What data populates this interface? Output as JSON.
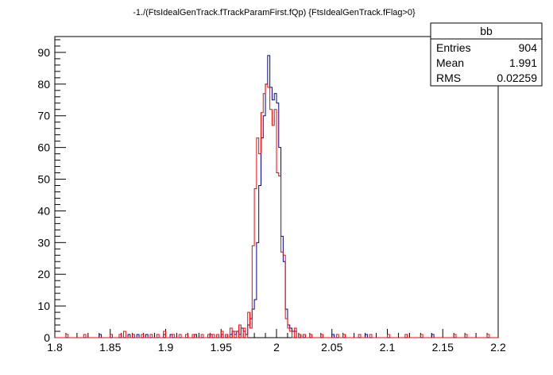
{
  "chart_data": {
    "type": "histogram-step",
    "title": "-1./(FtsIdealGenTrack.fTrackParamFirst.fQp) {FtsIdealGenTrack.fFlag>0}",
    "xlabel": "",
    "ylabel": "",
    "xlim": [
      1.8,
      2.2
    ],
    "ylim": [
      0,
      95
    ],
    "xticks": [
      1.8,
      1.85,
      1.9,
      1.95,
      2.0,
      2.05,
      2.1,
      2.15,
      2.2
    ],
    "xtick_labels": [
      "1.8",
      "1.85",
      "1.9",
      "1.95",
      "2",
      "2.05",
      "2.1",
      "2.15",
      "2.2"
    ],
    "yticks": [
      0,
      10,
      20,
      30,
      40,
      50,
      60,
      70,
      80,
      90
    ],
    "ytick_labels": [
      "0",
      "10",
      "20",
      "30",
      "40",
      "50",
      "60",
      "70",
      "80",
      "90"
    ],
    "bin_edges_range": [
      1.8,
      2.2
    ],
    "bin_count": 200,
    "series": [
      {
        "color": "#000099",
        "points": [
          [
            1.84,
            1
          ],
          [
            1.866,
            1
          ],
          [
            1.874,
            1
          ],
          [
            1.882,
            1
          ],
          [
            1.898,
            1
          ],
          [
            1.904,
            1
          ],
          [
            1.926,
            1
          ],
          [
            1.94,
            1
          ],
          [
            1.95,
            1
          ],
          [
            1.954,
            1
          ],
          [
            1.958,
            1
          ],
          [
            1.96,
            2
          ],
          [
            1.962,
            1
          ],
          [
            1.964,
            2
          ],
          [
            1.966,
            1
          ],
          [
            1.968,
            3
          ],
          [
            1.97,
            2
          ],
          [
            1.972,
            1
          ],
          [
            1.974,
            4
          ],
          [
            1.976,
            6
          ],
          [
            1.978,
            9
          ],
          [
            1.98,
            12
          ],
          [
            1.982,
            30
          ],
          [
            1.984,
            48
          ],
          [
            1.986,
            63
          ],
          [
            1.988,
            70
          ],
          [
            1.99,
            80
          ],
          [
            1.992,
            89
          ],
          [
            1.994,
            79
          ],
          [
            1.996,
            75
          ],
          [
            1.998,
            77
          ],
          [
            2.0,
            74
          ],
          [
            2.002,
            60
          ],
          [
            2.004,
            32
          ],
          [
            2.006,
            24
          ],
          [
            2.008,
            9
          ],
          [
            2.01,
            4
          ],
          [
            2.012,
            3
          ],
          [
            2.014,
            2
          ],
          [
            2.016,
            2
          ],
          [
            2.02,
            1
          ],
          [
            2.024,
            1
          ],
          [
            2.05,
            1
          ],
          [
            2.08,
            1
          ],
          [
            2.14,
            1
          ]
        ]
      },
      {
        "color": "#ff0000",
        "points": [
          [
            1.81,
            1
          ],
          [
            1.826,
            1
          ],
          [
            1.85,
            1
          ],
          [
            1.858,
            1
          ],
          [
            1.862,
            2
          ],
          [
            1.87,
            1
          ],
          [
            1.878,
            1
          ],
          [
            1.886,
            1
          ],
          [
            1.892,
            1
          ],
          [
            1.898,
            2
          ],
          [
            1.906,
            1
          ],
          [
            1.912,
            1
          ],
          [
            1.918,
            1
          ],
          [
            1.924,
            1
          ],
          [
            1.932,
            1
          ],
          [
            1.938,
            1
          ],
          [
            1.942,
            1
          ],
          [
            1.946,
            1
          ],
          [
            1.95,
            2
          ],
          [
            1.954,
            1
          ],
          [
            1.958,
            3
          ],
          [
            1.962,
            2
          ],
          [
            1.966,
            4
          ],
          [
            1.97,
            3
          ],
          [
            1.974,
            8
          ],
          [
            1.976,
            3
          ],
          [
            1.978,
            29
          ],
          [
            1.98,
            47
          ],
          [
            1.982,
            63
          ],
          [
            1.984,
            58
          ],
          [
            1.986,
            71
          ],
          [
            1.988,
            77
          ],
          [
            1.99,
            80
          ],
          [
            1.992,
            79
          ],
          [
            1.994,
            72
          ],
          [
            1.996,
            67
          ],
          [
            1.998,
            72
          ],
          [
            2.0,
            52
          ],
          [
            2.002,
            51
          ],
          [
            2.004,
            27
          ],
          [
            2.006,
            26
          ],
          [
            2.008,
            6
          ],
          [
            2.01,
            3
          ],
          [
            2.012,
            2
          ],
          [
            2.016,
            3
          ],
          [
            2.02,
            1
          ],
          [
            2.024,
            1
          ],
          [
            2.03,
            1
          ],
          [
            2.04,
            1
          ],
          [
            2.054,
            1
          ],
          [
            2.06,
            1
          ],
          [
            2.074,
            1
          ],
          [
            2.084,
            1
          ],
          [
            2.1,
            1
          ],
          [
            2.116,
            1
          ],
          [
            2.13,
            1
          ],
          [
            2.16,
            1
          ],
          [
            2.17,
            1
          ],
          [
            2.19,
            1
          ]
        ]
      }
    ],
    "legend": "top-right",
    "stats_box": {
      "name": "bb",
      "rows": [
        {
          "label": "Entries",
          "value": "904"
        },
        {
          "label": "Mean",
          "value": "1.991"
        },
        {
          "label": "RMS",
          "value": "0.02259"
        }
      ]
    }
  }
}
